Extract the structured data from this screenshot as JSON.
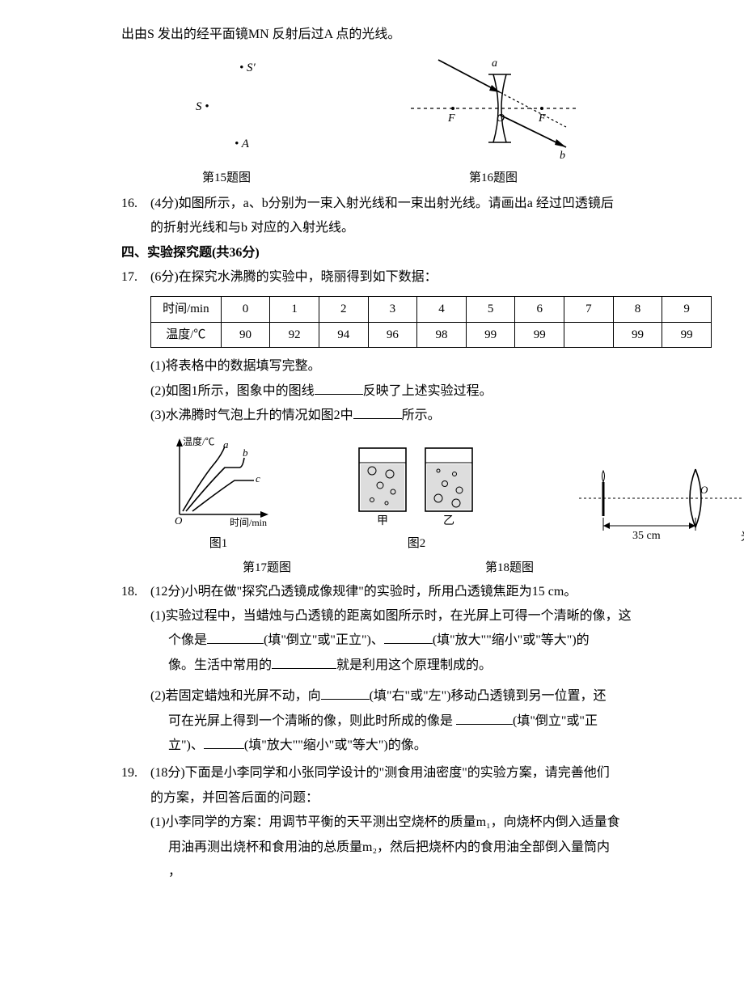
{
  "intro_line": "出由S 发出的经平面镜MN 反射后过A 点的光线。",
  "fig15": {
    "S": "S",
    "Sp": "S′",
    "A": "A",
    "cap": "第15题图",
    "dot": "•"
  },
  "fig16": {
    "a": "a",
    "b": "b",
    "F": "F",
    "O": "O",
    "cap": "第16题图"
  },
  "q16": {
    "num": "16.",
    "pts": "(4分)",
    "text_a": "如图所示，a、b分别为一束入射光线和一束出射光线。请画出a 经过凹透镜后",
    "text_b": "的折射光线和与b 对应的入射光线。"
  },
  "sec4": "四、实验探究题(共36分)",
  "q17": {
    "num": "17.",
    "pts": "(6分)",
    "lead": "在探究水沸腾的实验中，晓丽得到如下数据：",
    "hdr_time": "时间/min",
    "hdr_temp": "温度/℃",
    "times": [
      "0",
      "1",
      "2",
      "3",
      "4",
      "5",
      "6",
      "7",
      "8",
      "9"
    ],
    "temps": [
      "90",
      "92",
      "94",
      "96",
      "98",
      "99",
      "99",
      "",
      "99",
      "99"
    ],
    "col0_w": 84,
    "coln_w": 58,
    "p1": "(1)将表格中的数据填写完整。",
    "p2_a": "(2)如图1所示，图象中的图线",
    "p2_b": "反映了上述实验过程。",
    "p3_a": "(3)水沸腾时气泡上升的情况如图2中",
    "p3_b": "所示。",
    "graph": {
      "ylab": "温度/℃",
      "xlab": "时间/min",
      "a": "a",
      "b": "b",
      "c": "c",
      "cap1": "图1",
      "jia": "甲",
      "yi": "乙",
      "cap2": "图2"
    },
    "cap": "第17题图"
  },
  "q18": {
    "num": "18.",
    "pts": "(12分)",
    "lead": "小明在做\"探究凸透镜成像规律\"的实验时，所用凸透镜焦距为15 cm。",
    "fig": {
      "O": "O",
      "dist": "35 cm",
      "screen": "光屏",
      "cap": "第18题图"
    },
    "p1_a": "(1)实验过程中，当蜡烛与凸透镜的距离如图所示时，在光屏上可得一个清晰的像，这",
    "p1_b": "个像是",
    "p1_c": "(填\"倒立\"或\"正立\")、",
    "p1_d": "(填\"放大\"\"缩小\"或\"等大\")的",
    "p1_e": "像。生活中常用的",
    "p1_f": "就是利用这个原理制成的。",
    "p2_a": "(2)若固定蜡烛和光屏不动，向",
    "p2_b": "(填\"右\"或\"左\")移动凸透镜到另一位置，还",
    "p2_c": "可在光屏上得到一个清晰的像，则此时所成的像是",
    "p2_d": "(填\"倒立\"或\"正",
    "p2_e": "立\")、",
    "p2_f": "(填\"放大\"\"缩小\"或\"等大\")的像。"
  },
  "q19": {
    "num": "19.",
    "pts": "(18分)",
    "lead_a": "下面是小李同学和小张同学设计的\"测食用油密度\"的实验方案，请完善他们",
    "lead_b": "的方案，并回答后面的问题：",
    "p1_a": "(1)小李同学的方案：用调节平衡的天平测出空烧杯的质量m₁，向烧杯内倒入适量食",
    "p1_b": "用油再测出烧杯和食用油的总质量m₂，然后把烧杯内的食用油全部倒入量筒内",
    "p1_c": "，"
  }
}
